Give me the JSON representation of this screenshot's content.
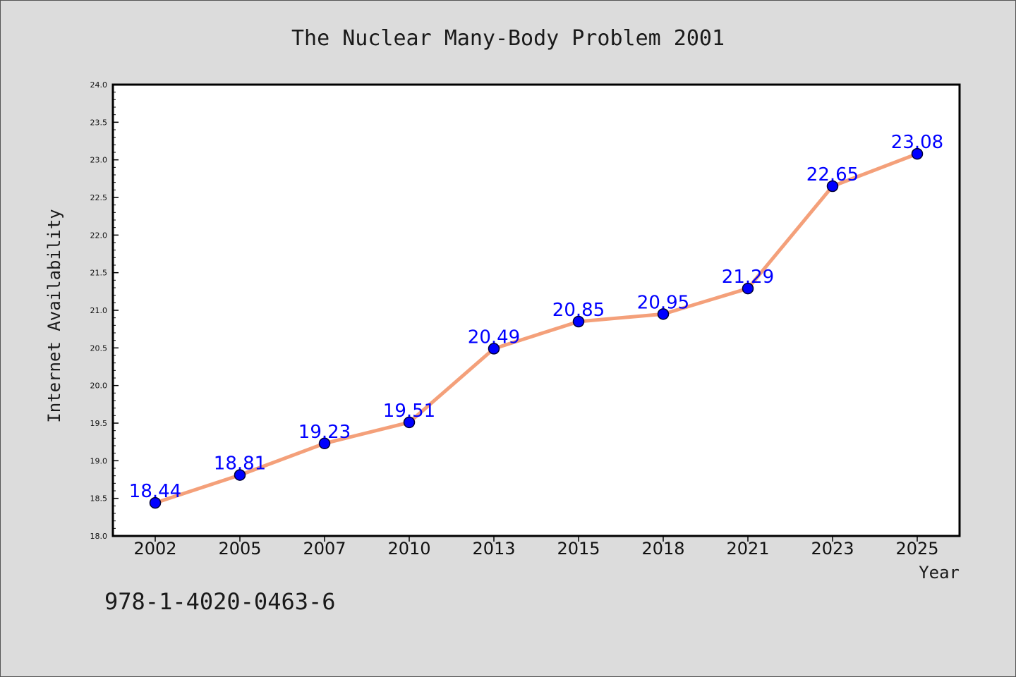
{
  "chart_data": {
    "type": "line",
    "title": "The Nuclear Many-Body Problem 2001",
    "xlabel": "Year",
    "ylabel": "Internet Availability",
    "annotation": "978-1-4020-0463-6",
    "categories": [
      "2002",
      "2005",
      "2007",
      "2010",
      "2013",
      "2015",
      "2018",
      "2021",
      "2023",
      "2025"
    ],
    "values": [
      18.44,
      18.81,
      19.23,
      19.51,
      20.49,
      20.85,
      20.95,
      21.29,
      22.65,
      23.08
    ],
    "ylim": [
      18.0,
      24.0
    ],
    "yticks": [
      "18.0",
      "18.5",
      "19.0",
      "19.5",
      "20.0",
      "20.5",
      "21.0",
      "21.5",
      "22.0",
      "22.5",
      "23.0",
      "23.5",
      "24.0"
    ],
    "grid": false,
    "legend": "none",
    "colors": {
      "line": "#f4a07a",
      "marker": "#0000ff",
      "data_label": "#0000ff",
      "plot_background": "#ffffff",
      "page_background": "#dcdcdc"
    }
  }
}
